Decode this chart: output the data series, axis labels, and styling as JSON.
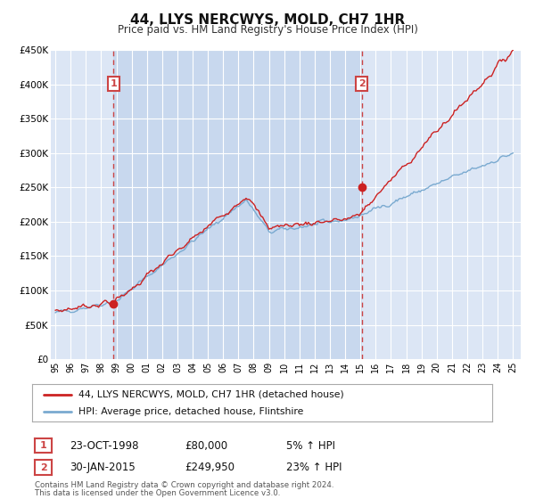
{
  "title": "44, LLYS NERCWYS, MOLD, CH7 1HR",
  "subtitle": "Price paid vs. HM Land Registry's House Price Index (HPI)",
  "ylim": [
    0,
    450000
  ],
  "xlim": [
    1994.7,
    2025.5
  ],
  "yticks": [
    0,
    50000,
    100000,
    150000,
    200000,
    250000,
    300000,
    350000,
    400000,
    450000
  ],
  "ytick_labels": [
    "£0",
    "£50K",
    "£100K",
    "£150K",
    "£200K",
    "£250K",
    "£300K",
    "£350K",
    "£400K",
    "£450K"
  ],
  "xtick_years": [
    1995,
    1996,
    1997,
    1998,
    1999,
    2000,
    2001,
    2002,
    2003,
    2004,
    2005,
    2006,
    2007,
    2008,
    2009,
    2010,
    2011,
    2012,
    2013,
    2014,
    2015,
    2016,
    2017,
    2018,
    2019,
    2020,
    2021,
    2022,
    2023,
    2024,
    2025
  ],
  "plot_bg_color": "#dce6f5",
  "shaded_color": "#c8d8ee",
  "grid_color": "#ffffff",
  "sale1_date": 1998.81,
  "sale1_price": 80000,
  "sale2_date": 2015.08,
  "sale2_price": 249950,
  "red_line_color": "#cc2222",
  "blue_line_color": "#7aaad0",
  "marker_color": "#cc2222",
  "vline_color": "#cc4444",
  "legend_label_red": "44, LLYS NERCWYS, MOLD, CH7 1HR (detached house)",
  "legend_label_blue": "HPI: Average price, detached house, Flintshire",
  "table_row1": [
    "1",
    "23-OCT-1998",
    "£80,000",
    "5% ↑ HPI"
  ],
  "table_row2": [
    "2",
    "30-JAN-2015",
    "£249,950",
    "23% ↑ HPI"
  ],
  "footer_line1": "Contains HM Land Registry data © Crown copyright and database right 2024.",
  "footer_line2": "This data is licensed under the Open Government Licence v3.0."
}
